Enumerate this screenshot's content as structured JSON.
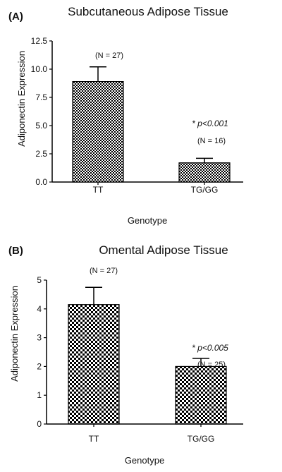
{
  "chart_data": [
    {
      "type": "bar",
      "panel_label": "(A)",
      "title": "Subcutaneous Adipose Tissue",
      "xlabel": "Genotype",
      "ylabel": "Adiponectin Expression",
      "categories": [
        "TT",
        "TG/GG"
      ],
      "values": [
        8.9,
        1.7
      ],
      "error_upper": [
        10.2,
        2.1
      ],
      "n_labels": [
        "(N = 27)",
        "(N = 16)"
      ],
      "significance": "* p<0.001",
      "ylim": [
        0,
        12.5
      ],
      "yticks": [
        "0.0",
        "2.5",
        "5.0",
        "7.5",
        "10.0",
        "12.5"
      ],
      "ytick_values": [
        0,
        2.5,
        5,
        7.5,
        10,
        12.5
      ],
      "grid": false,
      "colors": {
        "bar_light": "#ffffff",
        "bar_dark": "#000000"
      }
    },
    {
      "type": "bar",
      "panel_label": "(B)",
      "title": "Omental Adipose Tissue",
      "xlabel": "Genotype",
      "ylabel": "Adiponectin Expression",
      "categories": [
        "TT",
        "TG/GG"
      ],
      "values": [
        4.15,
        2.0
      ],
      "error_upper": [
        4.75,
        2.28
      ],
      "n_labels": [
        "(N = 27)",
        "(N = 25)"
      ],
      "significance": "* p<0.005",
      "ylim": [
        0,
        5
      ],
      "yticks": [
        "0",
        "1",
        "2",
        "3",
        "4",
        "5"
      ],
      "ytick_values": [
        0,
        1,
        2,
        3,
        4,
        5
      ],
      "grid": false,
      "colors": {
        "bar_light": "#ffffff",
        "bar_dark": "#000000"
      }
    }
  ]
}
